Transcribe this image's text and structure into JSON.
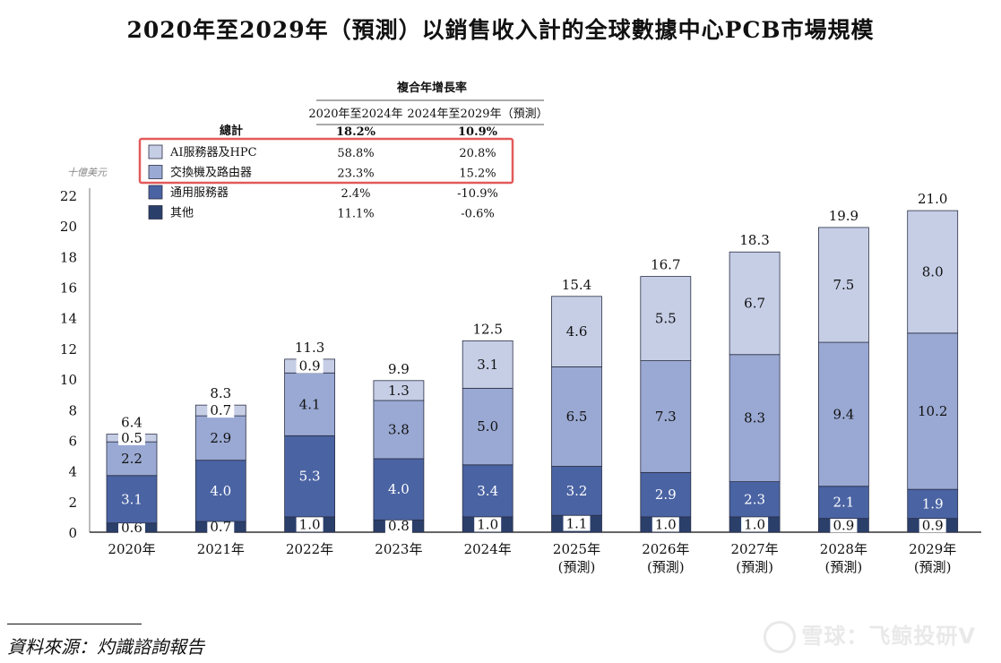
{
  "title": "2020年至2029年（預測）以銷售收入計的全球數據中心PCB市場規模",
  "source": "資料來源：灼識諮詢報告",
  "watermark": "雪球：飞鲸投研V",
  "chart_data": {
    "type": "bar",
    "stacked": true,
    "unit_label": "十億美元",
    "categories": [
      "2020年",
      "2021年",
      "2022年",
      "2023年",
      "2024年",
      "2025年",
      "2026年",
      "2027年",
      "2028年",
      "2029年"
    ],
    "category_sublabels": [
      "",
      "",
      "",
      "",
      "",
      "(預測)",
      "(預測)",
      "(預測)",
      "(預測)",
      "(預測)"
    ],
    "ylim": [
      0,
      22
    ],
    "yticks": [
      0,
      2,
      4,
      6,
      8,
      10,
      12,
      14,
      16,
      18,
      20,
      22
    ],
    "totals": [
      "6.4",
      "8.3",
      "11.3",
      "9.9",
      "12.5",
      "15.4",
      "16.7",
      "18.3",
      "19.9",
      "21.0"
    ],
    "series": [
      {
        "name": "其他",
        "color": "#2b3f6b",
        "values": [
          0.6,
          0.7,
          1.0,
          0.8,
          1.0,
          1.1,
          1.0,
          1.0,
          0.9,
          0.9
        ],
        "cagr": [
          "11.1%",
          "-0.6%"
        ]
      },
      {
        "name": "通用服務器",
        "color": "#4a63a3",
        "values": [
          3.1,
          4.0,
          5.3,
          4.0,
          3.4,
          3.2,
          2.9,
          2.3,
          2.1,
          1.9
        ],
        "cagr": [
          "2.4%",
          "-10.9%"
        ]
      },
      {
        "name": "交換機及路由器",
        "color": "#9aa9d3",
        "values": [
          2.2,
          2.9,
          4.1,
          3.8,
          5.0,
          6.5,
          7.3,
          8.3,
          9.4,
          10.2
        ],
        "cagr": [
          "23.3%",
          "15.2%"
        ]
      },
      {
        "name": "AI服務器及HPC",
        "color": "#c6cee6",
        "values": [
          0.5,
          0.7,
          0.9,
          1.3,
          3.1,
          4.6,
          5.5,
          6.7,
          7.5,
          8.0
        ],
        "cagr": [
          "58.8%",
          "20.8%"
        ]
      }
    ],
    "cagr_table": {
      "heading": "複合年增長率",
      "col1": "2020年至2024年",
      "col2": "2024年至2029年（預測）",
      "total_label": "總計",
      "total_values": [
        "18.2%",
        "10.9%"
      ]
    },
    "highlight_color": "#e35a5a"
  }
}
